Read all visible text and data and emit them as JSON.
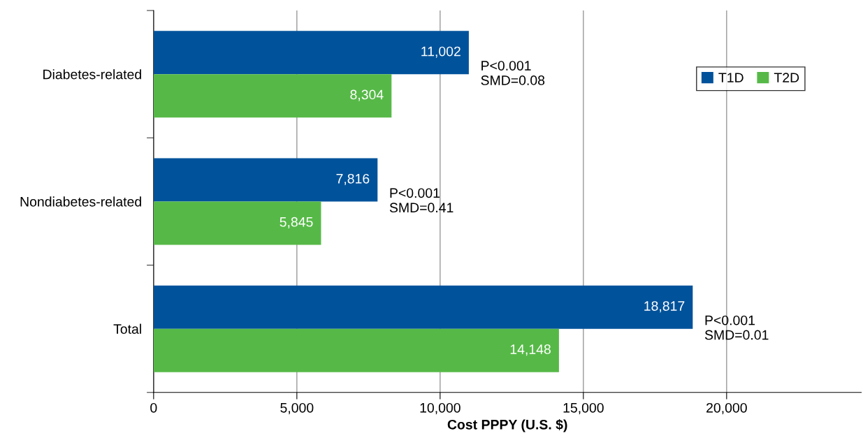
{
  "chart_data": {
    "type": "bar",
    "orientation": "horizontal",
    "xlabel": "Cost PPPY (U.S. $)",
    "categories": [
      "Diabetes-related",
      "Nondiabetes-related",
      "Total"
    ],
    "series": [
      {
        "name": "T1D",
        "color": "#00529b",
        "values": [
          11002,
          7816,
          18817
        ],
        "value_labels": [
          "11,002",
          "7,816",
          "18,817"
        ]
      },
      {
        "name": "T2D",
        "color": "#56b947",
        "values": [
          8304,
          5845,
          14148
        ],
        "value_labels": [
          "8,304",
          "5,845",
          "14,148"
        ]
      }
    ],
    "xlim": [
      0,
      24700
    ],
    "xticks": [
      {
        "value": 0,
        "label": "0"
      },
      {
        "value": 5000,
        "label": "5,000"
      },
      {
        "value": 10000,
        "label": "10,000"
      },
      {
        "value": 15000,
        "label": "15,000"
      },
      {
        "value": 20000,
        "label": "20,000"
      }
    ],
    "grid": "x",
    "legend": "top right",
    "annotations": [
      {
        "text": "P<0.001\nSMD=0.08",
        "x": 11002,
        "y": "Diabetes-related"
      },
      {
        "text": "P<0.001\nSMD=0.41",
        "x": 7816,
        "y": "Nondiabetes-related"
      },
      {
        "text": "P<0.001\nSMD=0.01",
        "x": 18817,
        "y": "Total"
      }
    ]
  }
}
